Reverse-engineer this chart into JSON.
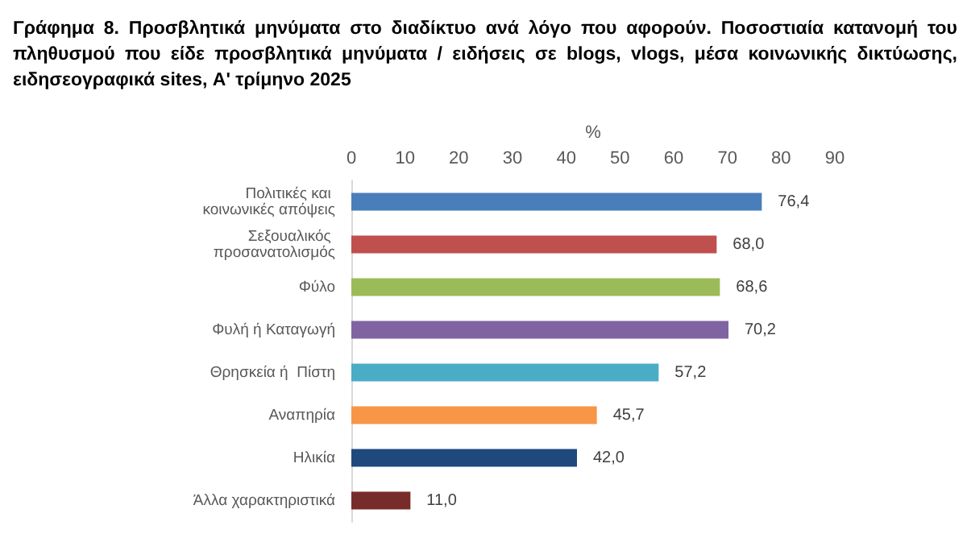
{
  "chart_data": {
    "type": "bar",
    "orientation": "horizontal",
    "title": "Γράφημα 8. Προσβλητικά μηνύματα στο διαδίκτυο ανά λόγο που αφορούν. Ποσοστιαία κατανομή του πληθυσμού που είδε προσβλητικά μηνύματα / ειδήσεις σε blogs, vlogs, μέσα κοινωνικής δικτύωσης, ειδησεογραφικά sites,  Α' τρίμηνο 2025",
    "xlabel": "%",
    "categories": [
      "Πολιτικές και κοινωνικές απόψεις",
      "Σεξουαλικός προσανατολισμός",
      "Φύλο",
      "Φυλή ή Καταγωγή",
      "Θρησκεία ή  Πίστη",
      "Αναπηρία",
      "Ηλικία",
      "Άλλα χαρακτηριστικά"
    ],
    "values": [
      76.4,
      68.0,
      68.6,
      70.2,
      57.2,
      45.7,
      42.0,
      11.0
    ],
    "value_labels": [
      "76,4",
      "68,0",
      "68,6",
      "70,2",
      "57,2",
      "45,7",
      "42,0",
      "11,0"
    ],
    "colors": [
      "#4a7ebb",
      "#c0504d",
      "#9bbb59",
      "#8064a2",
      "#4bacc6",
      "#f79646",
      "#1f497d",
      "#772c2a"
    ],
    "xlim": [
      0,
      90
    ],
    "xticks": [
      0,
      10,
      20,
      30,
      40,
      50,
      60,
      70,
      80,
      90
    ],
    "grid": false
  }
}
